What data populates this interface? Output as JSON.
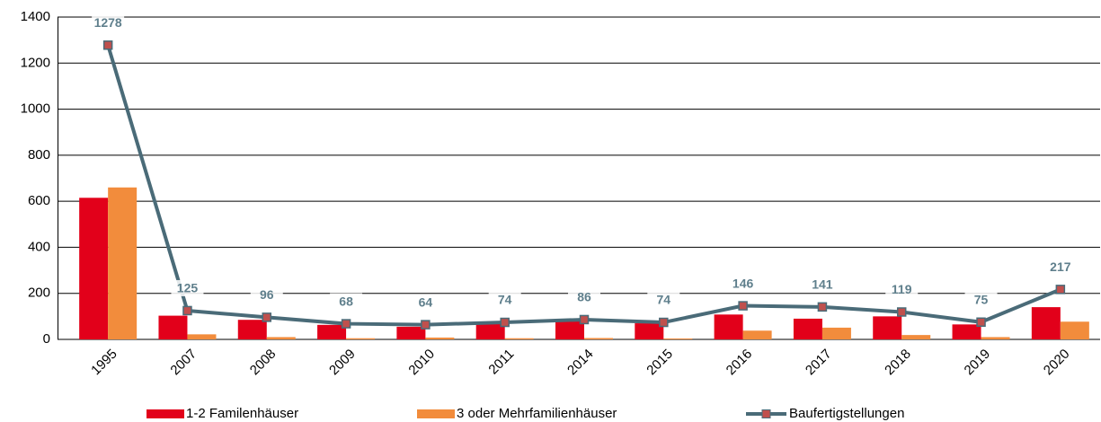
{
  "chart_data": {
    "type": "bar",
    "categories": [
      "1995",
      "2007",
      "2008",
      "2009",
      "2010",
      "2011",
      "2014",
      "2015",
      "2016",
      "2017",
      "2018",
      "2019",
      "2020"
    ],
    "series": [
      {
        "name": "1-2 Familenhäuser",
        "color": "#e2001a",
        "type": "bar",
        "values": [
          615,
          103,
          85,
          63,
          55,
          68,
          80,
          70,
          108,
          90,
          100,
          65,
          140
        ]
      },
      {
        "name": "3 oder Mehrfamilienhäuser",
        "color": "#f28c3c",
        "type": "bar",
        "values": [
          660,
          22,
          10,
          5,
          8,
          5,
          6,
          4,
          38,
          51,
          19,
          10,
          77
        ]
      },
      {
        "name": "Baufertigstellungen",
        "color": "#4a6b78",
        "marker_color": "#c0504d",
        "type": "line",
        "values": [
          1278,
          125,
          96,
          68,
          64,
          74,
          86,
          74,
          146,
          141,
          119,
          75,
          217
        ]
      }
    ],
    "ylim": [
      0,
      1400
    ],
    "yticks": [
      0,
      200,
      400,
      600,
      800,
      1000,
      1200,
      1400
    ],
    "grid": true,
    "legend": "bottom"
  }
}
